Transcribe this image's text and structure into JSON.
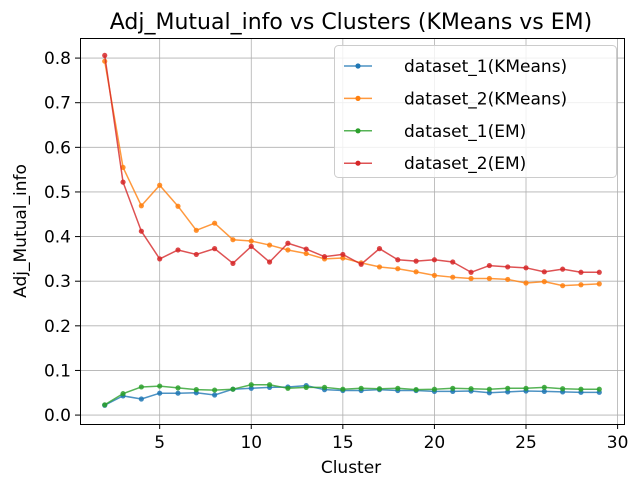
{
  "chart_data": {
    "type": "line",
    "title": "Adj_Mutual_info vs Clusters (KMeans vs EM)",
    "xlabel": "Cluster",
    "ylabel": "Adj_Mutual_info",
    "xlim": [
      0.65,
      30.35
    ],
    "ylim": [
      -0.02,
      0.845
    ],
    "xticks": [
      5,
      10,
      15,
      20,
      25,
      30
    ],
    "yticks": [
      0.0,
      0.1,
      0.2,
      0.3,
      0.4,
      0.5,
      0.6,
      0.7,
      0.8
    ],
    "ytick_labels": [
      "0.0",
      "0.1",
      "0.2",
      "0.3",
      "0.4",
      "0.5",
      "0.6",
      "0.7",
      "0.8"
    ],
    "xtick_labels": [
      "5",
      "10",
      "15",
      "20",
      "25",
      "30"
    ],
    "grid": true,
    "legend_position": "top-right",
    "x": [
      2,
      3,
      4,
      5,
      6,
      7,
      8,
      9,
      10,
      11,
      12,
      13,
      14,
      15,
      16,
      17,
      18,
      19,
      20,
      21,
      22,
      23,
      24,
      25,
      26,
      27,
      28,
      29
    ],
    "series": [
      {
        "name": "dataset_1(KMeans)",
        "color": "#1f77b4",
        "values": [
          0.022,
          0.043,
          0.036,
          0.049,
          0.049,
          0.05,
          0.045,
          0.058,
          0.06,
          0.062,
          0.063,
          0.066,
          0.057,
          0.055,
          0.055,
          0.057,
          0.055,
          0.055,
          0.053,
          0.053,
          0.054,
          0.05,
          0.052,
          0.054,
          0.053,
          0.052,
          0.051,
          0.051
        ]
      },
      {
        "name": "dataset_2(KMeans)",
        "color": "#ff7f0e",
        "values": [
          0.793,
          0.555,
          0.469,
          0.515,
          0.468,
          0.414,
          0.43,
          0.393,
          0.39,
          0.381,
          0.37,
          0.362,
          0.35,
          0.352,
          0.341,
          0.332,
          0.328,
          0.321,
          0.313,
          0.309,
          0.306,
          0.306,
          0.304,
          0.296,
          0.299,
          0.29,
          0.292,
          0.294
        ]
      },
      {
        "name": "dataset_1(EM)",
        "color": "#2ca02c",
        "values": [
          0.023,
          0.048,
          0.063,
          0.065,
          0.061,
          0.057,
          0.056,
          0.058,
          0.068,
          0.068,
          0.06,
          0.062,
          0.062,
          0.058,
          0.06,
          0.059,
          0.06,
          0.057,
          0.058,
          0.06,
          0.059,
          0.058,
          0.06,
          0.06,
          0.062,
          0.059,
          0.058,
          0.058
        ]
      },
      {
        "name": "dataset_2(EM)",
        "color": "#d62728",
        "values": [
          0.806,
          0.522,
          0.412,
          0.35,
          0.37,
          0.36,
          0.373,
          0.34,
          0.378,
          0.343,
          0.385,
          0.372,
          0.355,
          0.36,
          0.338,
          0.373,
          0.348,
          0.345,
          0.348,
          0.343,
          0.32,
          0.335,
          0.332,
          0.33,
          0.321,
          0.327,
          0.32,
          0.32
        ]
      }
    ]
  }
}
